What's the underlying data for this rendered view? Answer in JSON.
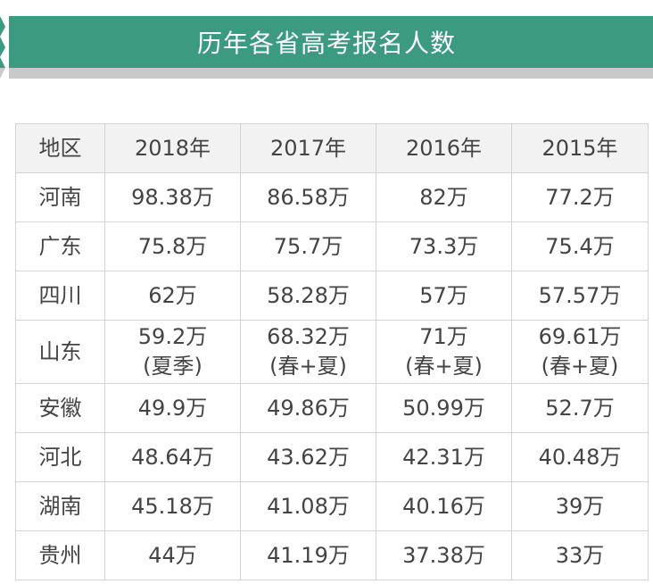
{
  "title": "历年各省高考报名人数",
  "colors": {
    "accent": "#3c9a80",
    "text": "#444444",
    "border": "#d4d4d4",
    "header_bg": "#f2f2f2"
  },
  "chart_data": {
    "type": "table",
    "title": "历年各省高考报名人数",
    "headers": [
      "地区",
      "2018年",
      "2017年",
      "2016年",
      "2015年"
    ],
    "rows": [
      {
        "region": "河南",
        "cells": [
          [
            "98.38万"
          ],
          [
            "86.58万"
          ],
          [
            "82万"
          ],
          [
            "77.2万"
          ]
        ]
      },
      {
        "region": "广东",
        "cells": [
          [
            "75.8万"
          ],
          [
            "75.7万"
          ],
          [
            "73.3万"
          ],
          [
            "75.4万"
          ]
        ]
      },
      {
        "region": "四川",
        "cells": [
          [
            "62万"
          ],
          [
            "58.28万"
          ],
          [
            "57万"
          ],
          [
            "57.57万"
          ]
        ]
      },
      {
        "region": "山东",
        "cells": [
          [
            "59.2万",
            "(夏季)"
          ],
          [
            "68.32万",
            "(春+夏)"
          ],
          [
            "71万",
            "(春+夏)"
          ],
          [
            "69.61万",
            "(春+夏)"
          ]
        ]
      },
      {
        "region": "安徽",
        "cells": [
          [
            "49.9万"
          ],
          [
            "49.86万"
          ],
          [
            "50.99万"
          ],
          [
            "52.7万"
          ]
        ]
      },
      {
        "region": "河北",
        "cells": [
          [
            "48.64万"
          ],
          [
            "43.62万"
          ],
          [
            "42.31万"
          ],
          [
            "40.48万"
          ]
        ]
      },
      {
        "region": "湖南",
        "cells": [
          [
            "45.18万"
          ],
          [
            "41.08万"
          ],
          [
            "40.16万"
          ],
          [
            "39万"
          ]
        ]
      },
      {
        "region": "贵州",
        "cells": [
          [
            "44万"
          ],
          [
            "41.19万"
          ],
          [
            "37.38万"
          ],
          [
            "33万"
          ]
        ]
      }
    ]
  }
}
